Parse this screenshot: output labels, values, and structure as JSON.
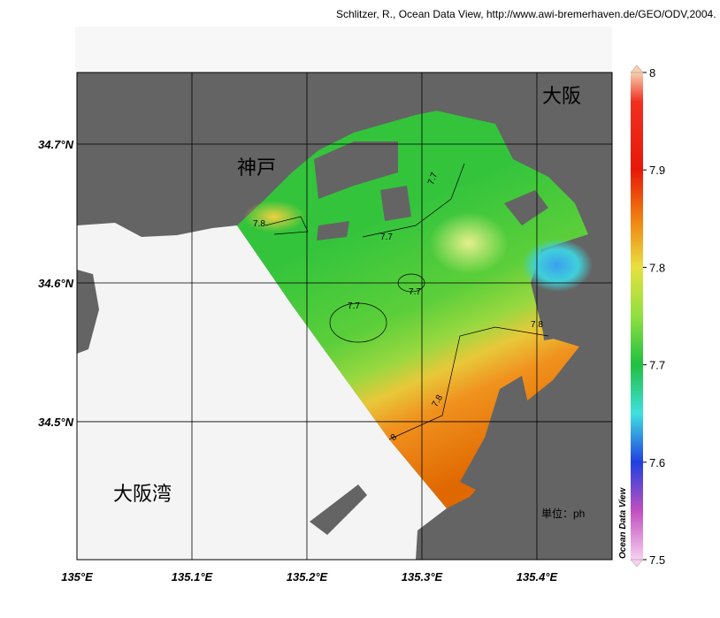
{
  "credit": "Schlitzer, R., Ocean Data View, http://www.awi-bremerhaven.de/GEO/ODV,2004.",
  "map": {
    "xlim": [
      135,
      135.4654
    ],
    "ylim": [
      34.4006,
      34.7516
    ],
    "xticks": [
      {
        "value": 135,
        "label": "135°E"
      },
      {
        "value": 135.1,
        "label": "135.1°E"
      },
      {
        "value": 135.2,
        "label": "135.2°E"
      },
      {
        "value": 135.3,
        "label": "135.3°E"
      },
      {
        "value": 135.4,
        "label": "135.4°E"
      }
    ],
    "yticks": [
      {
        "value": 34.5,
        "label": "34.5°N"
      },
      {
        "value": 34.6,
        "label": "34.6°N"
      },
      {
        "value": 34.7,
        "label": "34.7°N"
      }
    ],
    "places": [
      "神戸",
      "大阪",
      "大阪湾"
    ],
    "unit": "単位：ph",
    "contour_labels": [
      7.8,
      7.7,
      7.7,
      7.7,
      7.7,
      7.8,
      7.8,
      8
    ]
  },
  "colorbar": {
    "title": "Ocean Data View",
    "lim": [
      7.5,
      8
    ],
    "ticks": [
      7.5,
      7.6,
      7.7,
      7.8,
      7.9,
      8
    ]
  }
}
